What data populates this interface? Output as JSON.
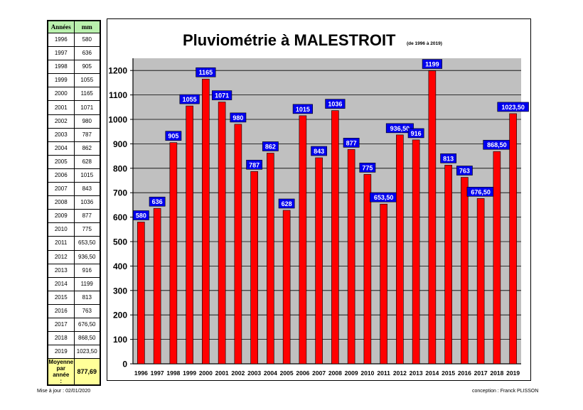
{
  "table": {
    "header_year": "Années",
    "header_mm": "mm",
    "rows": [
      {
        "year": "1996",
        "mm": "580"
      },
      {
        "year": "1997",
        "mm": "636"
      },
      {
        "year": "1998",
        "mm": "905"
      },
      {
        "year": "1999",
        "mm": "1055"
      },
      {
        "year": "2000",
        "mm": "1165"
      },
      {
        "year": "2001",
        "mm": "1071"
      },
      {
        "year": "2002",
        "mm": "980"
      },
      {
        "year": "2003",
        "mm": "787"
      },
      {
        "year": "2004",
        "mm": "862"
      },
      {
        "year": "2005",
        "mm": "628"
      },
      {
        "year": "2006",
        "mm": "1015"
      },
      {
        "year": "2007",
        "mm": "843"
      },
      {
        "year": "2008",
        "mm": "1036"
      },
      {
        "year": "2009",
        "mm": "877"
      },
      {
        "year": "2010",
        "mm": "775"
      },
      {
        "year": "2011",
        "mm": "653,50"
      },
      {
        "year": "2012",
        "mm": "936,50"
      },
      {
        "year": "2013",
        "mm": "916"
      },
      {
        "year": "2014",
        "mm": "1199"
      },
      {
        "year": "2015",
        "mm": "813"
      },
      {
        "year": "2016",
        "mm": "763"
      },
      {
        "year": "2017",
        "mm": "676,50"
      },
      {
        "year": "2018",
        "mm": "868,50"
      },
      {
        "year": "2019",
        "mm": "1023,50"
      }
    ],
    "average_label_line1": "Moyenne",
    "average_label_line2": "par année",
    "average_label_line3": ":",
    "average_value": "877,69"
  },
  "chart_data": {
    "type": "bar",
    "title": "Pluviométrie à MALESTROIT",
    "subtitle": "(de 1996 à 2019)",
    "categories": [
      "1996",
      "1997",
      "1998",
      "1999",
      "2000",
      "2001",
      "2002",
      "2003",
      "2004",
      "2005",
      "2006",
      "2007",
      "2008",
      "2009",
      "2010",
      "2011",
      "2012",
      "2013",
      "2014",
      "2015",
      "2016",
      "2017",
      "2018",
      "2019"
    ],
    "values": [
      580,
      636,
      905,
      1055,
      1165,
      1071,
      980,
      787,
      862,
      628,
      1015,
      843,
      1036,
      877,
      775,
      653.5,
      936.5,
      916,
      1199,
      813,
      763,
      676.5,
      868.5,
      1023.5
    ],
    "data_labels": [
      "580",
      "636",
      "905",
      "1055",
      "1165",
      "1071",
      "980",
      "787",
      "862",
      "628",
      "1015",
      "843",
      "1036",
      "877",
      "775",
      "653,50",
      "936,50",
      "916",
      "1199",
      "813",
      "763",
      "676,50",
      "868,50",
      "1023,50"
    ],
    "ylim": [
      0,
      1200
    ],
    "yticks": [
      0,
      100,
      200,
      300,
      400,
      500,
      600,
      700,
      800,
      900,
      1000,
      1100,
      1200
    ],
    "grid": true,
    "xlabel": "",
    "ylabel": "",
    "colors": {
      "bar": "#ff0000",
      "plot_background": "#c0c0c0",
      "label_background": "#0000ee",
      "label_text": "#ffffff"
    }
  },
  "footer": {
    "updated": "Mise à jour : 02/01/2020",
    "credit": "conception : Franck PLISSON"
  }
}
